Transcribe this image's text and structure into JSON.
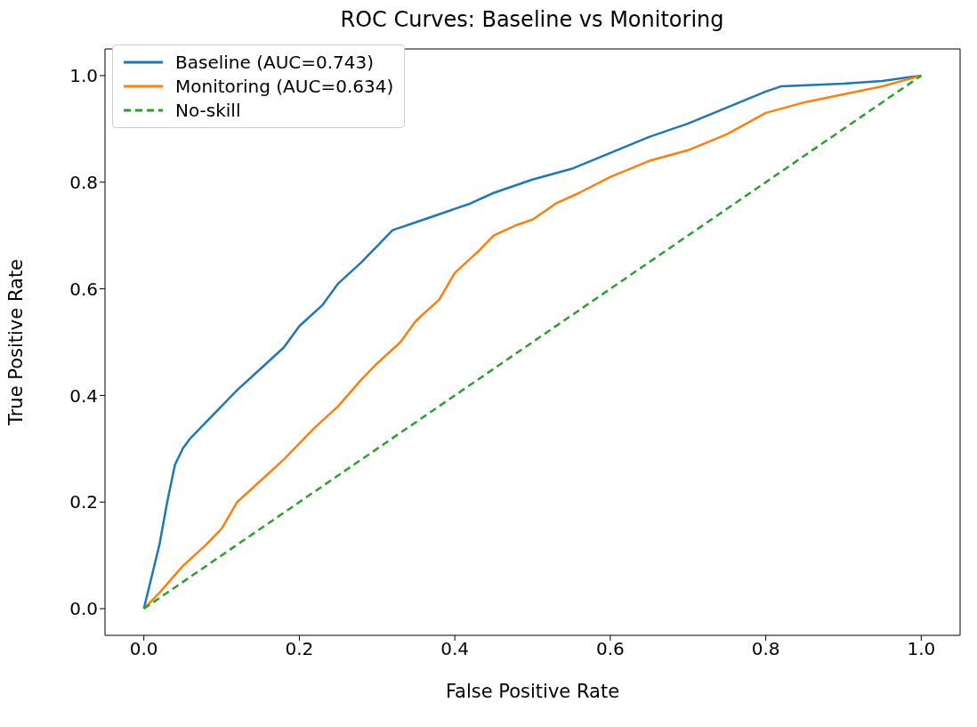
{
  "chart_data": {
    "type": "line",
    "title": "ROC Curves: Baseline vs Monitoring",
    "xlabel": "False Positive Rate",
    "ylabel": "True Positive Rate",
    "xlim": [
      -0.05,
      1.05
    ],
    "ylim": [
      -0.05,
      1.05
    ],
    "xticks": [
      {
        "value": 0,
        "label": "0.0"
      },
      0.2,
      0.4,
      0.6,
      0.8,
      {
        "value": 1,
        "label": "1.0"
      }
    ],
    "yticks": [
      {
        "value": 0,
        "label": "0.0"
      },
      0.2,
      0.4,
      0.6,
      0.8,
      {
        "value": 1,
        "label": "1.0"
      }
    ],
    "grid": false,
    "legend": "top left",
    "marker": "none",
    "series": [
      {
        "name": "Baseline (AUC=0.743)",
        "color": "#1f77b4",
        "line_style": "solid",
        "x": [
          0,
          0.01,
          0.02,
          0.03,
          0.04,
          0.05,
          0.06,
          0.08,
          0.1,
          0.12,
          0.15,
          0.18,
          0.2,
          0.23,
          0.25,
          0.28,
          0.3,
          0.32,
          0.35,
          0.38,
          0.42,
          0.45,
          0.5,
          0.55,
          0.6,
          0.65,
          0.7,
          0.75,
          0.8,
          0.82,
          0.9,
          0.95,
          1
        ],
        "values": [
          0,
          0.06,
          0.12,
          0.2,
          0.27,
          0.3,
          0.32,
          0.35,
          0.38,
          0.41,
          0.45,
          0.49,
          0.53,
          0.57,
          0.61,
          0.65,
          0.68,
          0.71,
          0.725,
          0.74,
          0.76,
          0.78,
          0.805,
          0.825,
          0.855,
          0.885,
          0.91,
          0.94,
          0.97,
          0.98,
          0.985,
          0.99,
          1
        ]
      },
      {
        "name": "Monitoring (AUC=0.634)",
        "color": "#ff7f0e",
        "line_style": "solid",
        "x": [
          0,
          0.02,
          0.05,
          0.08,
          0.1,
          0.12,
          0.15,
          0.18,
          0.2,
          0.22,
          0.25,
          0.28,
          0.3,
          0.33,
          0.35,
          0.38,
          0.4,
          0.43,
          0.45,
          0.48,
          0.5,
          0.53,
          0.56,
          0.6,
          0.65,
          0.7,
          0.75,
          0.8,
          0.85,
          0.9,
          0.95,
          1
        ],
        "values": [
          0,
          0.03,
          0.08,
          0.12,
          0.15,
          0.2,
          0.24,
          0.28,
          0.31,
          0.34,
          0.38,
          0.43,
          0.46,
          0.5,
          0.54,
          0.58,
          0.63,
          0.67,
          0.7,
          0.72,
          0.73,
          0.76,
          0.78,
          0.81,
          0.84,
          0.86,
          0.89,
          0.93,
          0.95,
          0.965,
          0.98,
          1
        ]
      },
      {
        "name": "No-skill",
        "color": "#2ca02c",
        "line_style": "dashed",
        "x": [
          0,
          1
        ],
        "values": [
          0,
          1
        ]
      }
    ]
  }
}
